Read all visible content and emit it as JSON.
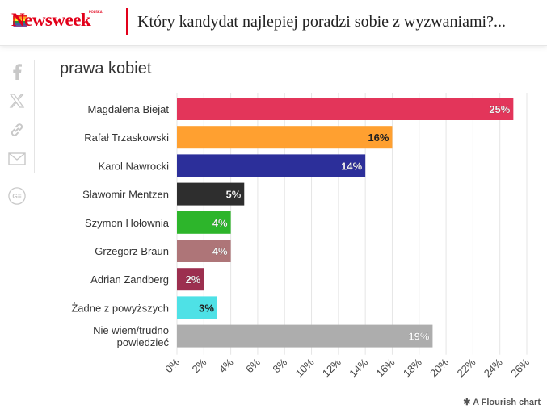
{
  "header": {
    "logo_text": "Newsweek",
    "logo_sub": "POLSKA",
    "title": "Który kandydat najlepiej poradzi sobie z wyzwaniami?..."
  },
  "share_icons": [
    "facebook-icon",
    "x-icon",
    "link-icon",
    "mail-icon",
    "google-news-icon"
  ],
  "chart_data": {
    "type": "bar",
    "orientation": "horizontal",
    "title": "prawa kobiet",
    "categories": [
      "Magdalena Biejat",
      "Rafał Trzaskowski",
      "Karol Nawrocki",
      "Sławomir Mentzen",
      "Szymon Hołownia",
      "Grzegorz Braun",
      "Adrian Zandberg",
      "Żadne z powyższych",
      "Nie wiem/trudno powiedzieć"
    ],
    "values": [
      25,
      16,
      14,
      5,
      4,
      4,
      2,
      3,
      19
    ],
    "value_labels": [
      "25%",
      "16%",
      "14%",
      "5%",
      "4%",
      "4%",
      "2%",
      "3%",
      "19%"
    ],
    "colors": [
      "#e3355a",
      "#ffa030",
      "#2c2f9a",
      "#2e2e2e",
      "#2db52b",
      "#ae7578",
      "#9c2f4f",
      "#4ee1e6",
      "#adadad"
    ],
    "label_colors": [
      "#ffffff",
      "#222222",
      "#ffffff",
      "#ffffff",
      "#ffffff",
      "#ffffff",
      "#ffffff",
      "#222222",
      "#ffffff"
    ],
    "xlim": [
      0,
      26
    ],
    "x_ticks": [
      "0%",
      "2%",
      "4%",
      "6%",
      "8%",
      "10%",
      "12%",
      "14%",
      "16%",
      "18%",
      "20%",
      "22%",
      "24%",
      "26%"
    ],
    "grid": true
  },
  "footer": {
    "credit": "A Flourish chart"
  }
}
